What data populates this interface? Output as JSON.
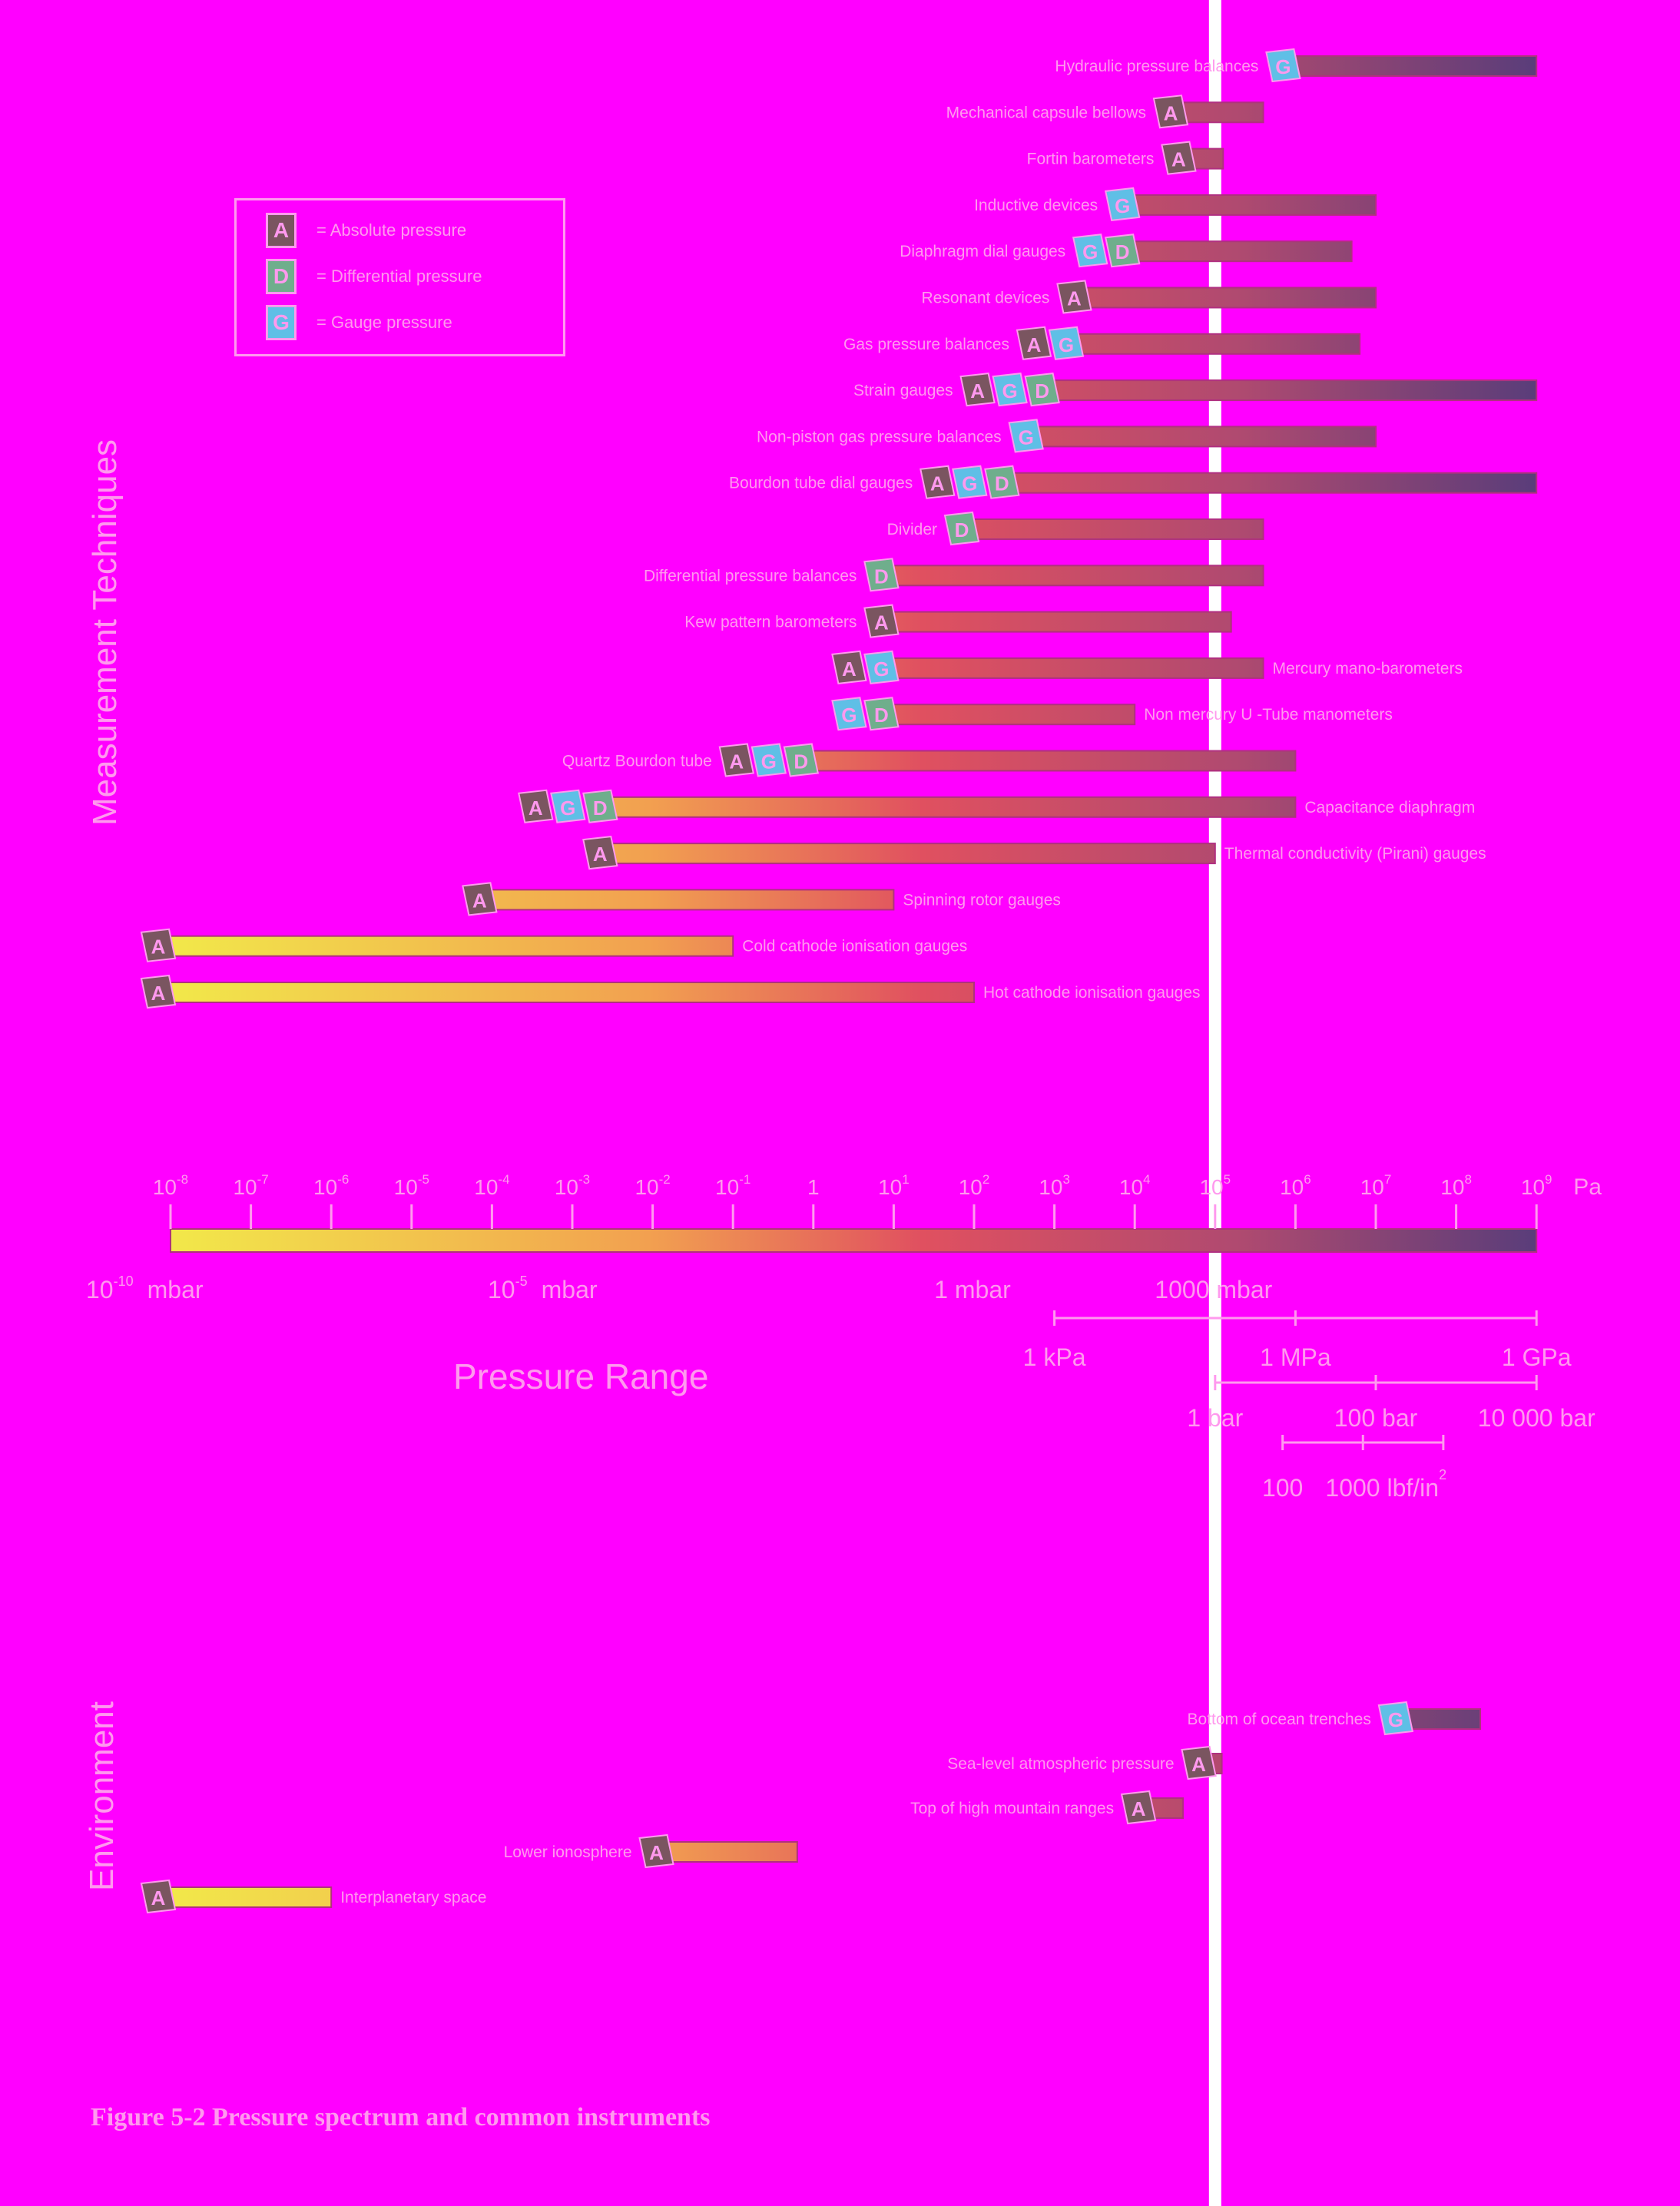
{
  "section_labels": {
    "techniques": "Measurement Techniques",
    "environment": "Environment"
  },
  "legend": {
    "items": [
      {
        "badge": "A",
        "label": "= Absolute pressure",
        "color": "#7a5560"
      },
      {
        "badge": "D",
        "label": "= Differential pressure",
        "color": "#6fae8c"
      },
      {
        "badge": "G",
        "label": "= Gauge pressure",
        "color": "#5fbfe6"
      }
    ]
  },
  "colors": {
    "background": "#ff00ff",
    "text": "#ff99ee",
    "vline": "#ffffff",
    "grad_low": "#f2e84a",
    "grad_mid": "#e05060",
    "grad_high": "#5a3d7a",
    "badge_A": "#7a5560",
    "badge_D": "#6fae8c",
    "badge_G": "#5fbfe6"
  },
  "chart_data": {
    "type": "bar",
    "orientation": "horizontal",
    "xscale": "log",
    "xunit": "Pa",
    "xlim": [
      "10^-8",
      "10^9"
    ],
    "xtick_labels": [
      "10^-8",
      "10^-7",
      "10^-6",
      "10^-5",
      "10^-4",
      "10^-3",
      "10^-2",
      "10^-1",
      "1",
      "10^1",
      "10^2",
      "10^3",
      "10^4",
      "10^5",
      "10^6",
      "10^7",
      "10^8",
      "10^9"
    ],
    "reference_line_pa": 100000,
    "techniques": [
      {
        "label": "Hydraulic pressure balances",
        "badges": [
          "G"
        ],
        "min_pa": "10^6",
        "max_pa": "10^9",
        "label_side": "left"
      },
      {
        "label": "Mechanical capsule bellows",
        "badges": [
          "A"
        ],
        "min_pa": "10^4.6",
        "max_pa": "10^5.6",
        "label_side": "left"
      },
      {
        "label": "Fortin barometers",
        "badges": [
          "A"
        ],
        "min_pa": "10^4.7",
        "max_pa": "10^5.1",
        "label_side": "left"
      },
      {
        "label": "Inductive devices",
        "badges": [
          "G"
        ],
        "min_pa": "10^4",
        "max_pa": "10^7",
        "label_side": "left"
      },
      {
        "label": "Diaphragm dial gauges",
        "badges": [
          "G",
          "D"
        ],
        "min_pa": "10^4",
        "max_pa": "10^6.7",
        "label_side": "left"
      },
      {
        "label": "Resonant devices",
        "badges": [
          "A"
        ],
        "min_pa": "10^3.4",
        "max_pa": "10^7",
        "label_side": "left"
      },
      {
        "label": "Gas pressure balances",
        "badges": [
          "A",
          "G"
        ],
        "min_pa": "10^3.3",
        "max_pa": "10^6.8",
        "label_side": "left"
      },
      {
        "label": "Strain gauges",
        "badges": [
          "A",
          "G",
          "D"
        ],
        "min_pa": "10^3",
        "max_pa": "10^9",
        "label_side": "left"
      },
      {
        "label": "Non-piston gas pressure balances",
        "badges": [
          "G"
        ],
        "min_pa": "10^2.8",
        "max_pa": "10^7",
        "label_side": "left"
      },
      {
        "label": "Bourdon tube dial gauges",
        "badges": [
          "A",
          "G",
          "D"
        ],
        "min_pa": "10^2.5",
        "max_pa": "10^9",
        "label_side": "left"
      },
      {
        "label": "Divider",
        "badges": [
          "D"
        ],
        "min_pa": "10^2",
        "max_pa": "10^5.6",
        "label_side": "left"
      },
      {
        "label": "Differential pressure balances",
        "badges": [
          "D"
        ],
        "min_pa": "10^1",
        "max_pa": "10^5.6",
        "label_side": "left"
      },
      {
        "label": "Kew pattern barometers",
        "badges": [
          "A"
        ],
        "min_pa": "10^1",
        "max_pa": "10^5.2",
        "label_side": "left"
      },
      {
        "label": "Mercury mano-barometers",
        "badges": [
          "A",
          "G"
        ],
        "min_pa": "10^1",
        "max_pa": "10^5.6",
        "label_side": "right"
      },
      {
        "label": "Non mercury U -Tube manometers",
        "badges": [
          "G",
          "D"
        ],
        "min_pa": "10^1",
        "max_pa": "10^4",
        "label_side": "right"
      },
      {
        "label": "Quartz Bourdon tube",
        "badges": [
          "A",
          "G",
          "D"
        ],
        "min_pa": "10^0",
        "max_pa": "10^6",
        "label_side": "left"
      },
      {
        "label": "Capacitance diaphragm",
        "badges": [
          "A",
          "G",
          "D"
        ],
        "min_pa": "10^-2.5",
        "max_pa": "10^6",
        "label_side": "right"
      },
      {
        "label": "Thermal conductivity (Pirani) gauges",
        "badges": [
          "A"
        ],
        "min_pa": "10^-2.5",
        "max_pa": "10^5",
        "label_side": "right"
      },
      {
        "label": "Spinning rotor gauges",
        "badges": [
          "A"
        ],
        "min_pa": "10^-4",
        "max_pa": "10^1",
        "label_side": "right"
      },
      {
        "label": "Cold cathode ionisation gauges",
        "badges": [
          "A"
        ],
        "min_pa": "10^-8",
        "max_pa": "10^-1",
        "label_side": "right"
      },
      {
        "label": "Hot cathode ionisation gauges",
        "badges": [
          "A"
        ],
        "min_pa": "10^-8",
        "max_pa": "10^2",
        "label_side": "right"
      }
    ],
    "environment": [
      {
        "label": "Bottom of ocean trenches",
        "badges": [
          "G"
        ],
        "min_pa": "10^7.4",
        "max_pa": "10^8.3",
        "label_side": "left"
      },
      {
        "label": "Sea-level atmospheric pressure",
        "badges": [
          "A"
        ],
        "min_pa": "10^4.95",
        "max_pa": "10^5.05",
        "label_side": "left"
      },
      {
        "label": "Top of high mountain ranges",
        "badges": [
          "A"
        ],
        "min_pa": "10^4.2",
        "max_pa": "10^4.6",
        "label_side": "left"
      },
      {
        "label": "Lower ionosphere",
        "badges": [
          "A"
        ],
        "min_pa": "10^-1.8",
        "max_pa": "10^-0.2",
        "label_side": "left"
      },
      {
        "label": "Interplanetary space",
        "badges": [
          "A"
        ],
        "min_pa": "10^-8",
        "max_pa": "10^-6",
        "label_side": "right"
      }
    ],
    "unit_scales": {
      "pa_label": "Pa",
      "mbar": [
        {
          "text": "10",
          "sup": "-10",
          "suffix": "mbar",
          "at_pa": "10^-8"
        },
        {
          "text": "10",
          "sup": "-5",
          "suffix": "mbar",
          "at_pa": "10^-3"
        },
        {
          "text": "1 mbar",
          "at_pa": "10^2"
        },
        {
          "text": "1000 mbar",
          "at_pa": "10^5"
        }
      ],
      "pa_units": [
        {
          "text": "1 kPa",
          "at_pa": "10^3"
        },
        {
          "text": "1 MPa",
          "at_pa": "10^6"
        },
        {
          "text": "1 GPa",
          "at_pa": "10^9"
        }
      ],
      "bar": [
        {
          "text": "1 bar",
          "at_pa": "10^5"
        },
        {
          "text": "100 bar",
          "at_pa": "10^7"
        },
        {
          "text": "10 000 bar",
          "at_pa": "10^9"
        }
      ],
      "lbf": [
        {
          "text": "100",
          "at_pa": "10^5.84"
        },
        {
          "text": "1000 lbf/in",
          "sup": "2",
          "at_pa": "10^6.84"
        }
      ]
    }
  },
  "pressure_range_label": "Pressure Range",
  "caption": "Figure 5-2 Pressure spectrum and common instruments"
}
